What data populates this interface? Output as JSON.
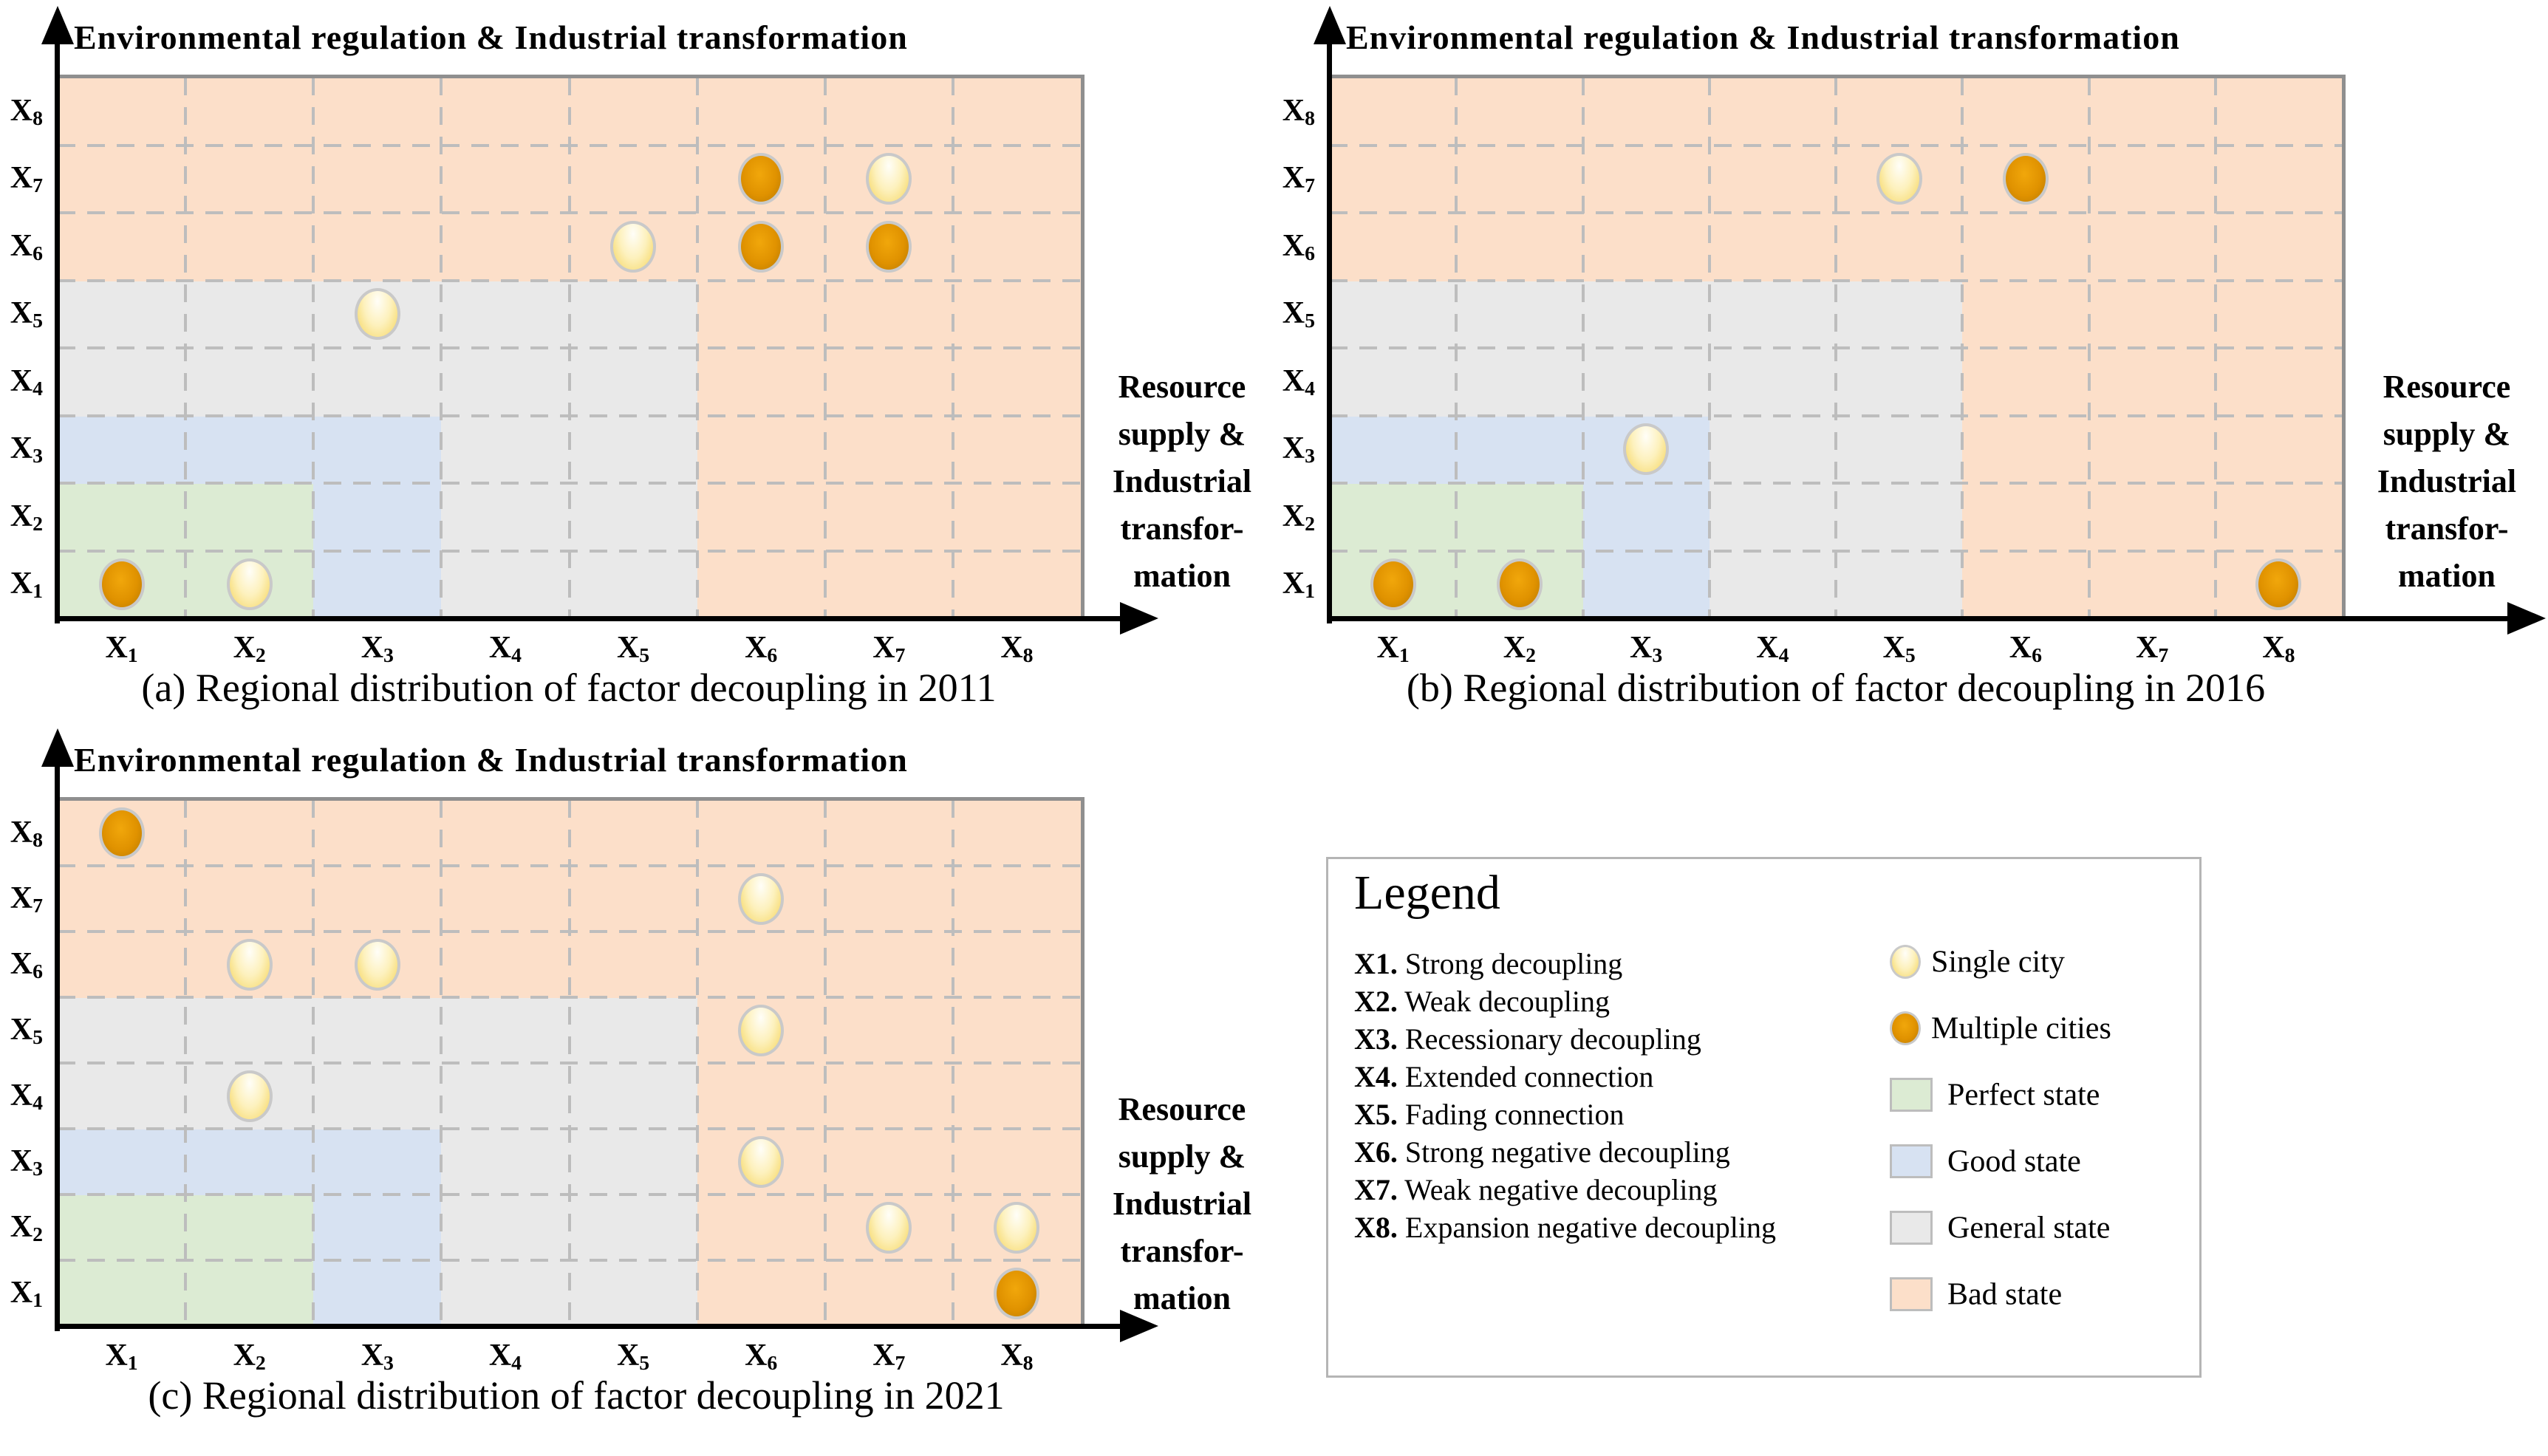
{
  "figure": {
    "y_axis_title": "Environmental regulation & Industrial transformation",
    "x_axis_label_lines": [
      "Resource",
      "supply &",
      "Industrial",
      "transfor-",
      "mation"
    ],
    "state_zones": {
      "perfect": [
        1,
        2
      ],
      "good": [
        3,
        3
      ],
      "general": [
        4,
        5
      ],
      "bad": [
        6,
        8
      ]
    }
  },
  "colors": {
    "perfect_state": "#dcebd3",
    "good_state": "#d7e2f2",
    "general_state": "#e9e9e9",
    "bad_state": "#fcdfc9",
    "grid": "#bdbdbd",
    "plot_border": "#8f8f8f",
    "axis": "#000000",
    "marker_ring": "#c9c9c9",
    "single_city": "#f5d55e",
    "multiple_cities": "#e09200"
  },
  "chart_data": [
    {
      "id": "a",
      "type": "scatter",
      "title": "Environmental regulation & Industrial transformation",
      "xlabel": "Resource supply & Industrial transformation",
      "ylabel": "Environmental regulation & Industrial transformation",
      "caption": "(a) Regional distribution of factor decoupling in 2011",
      "x_ticks": [
        "X1",
        "X2",
        "X3",
        "X4",
        "X5",
        "X6",
        "X7",
        "X8"
      ],
      "y_ticks": [
        "X1",
        "X2",
        "X3",
        "X4",
        "X5",
        "X6",
        "X7",
        "X8"
      ],
      "series": [
        {
          "name": "Single city",
          "marker": "single",
          "points": [
            [
              2,
              1
            ],
            [
              3,
              5
            ],
            [
              5,
              6
            ],
            [
              7,
              7
            ]
          ]
        },
        {
          "name": "Multiple cities",
          "marker": "multiple",
          "points": [
            [
              1,
              1
            ],
            [
              6,
              6
            ],
            [
              6,
              7
            ],
            [
              7,
              6
            ]
          ]
        }
      ]
    },
    {
      "id": "b",
      "type": "scatter",
      "title": "Environmental regulation & Industrial transformation",
      "xlabel": "Resource supply & Industrial transformation",
      "ylabel": "Environmental regulation & Industrial transformation",
      "caption": "(b) Regional distribution of factor decoupling in 2016",
      "x_ticks": [
        "X1",
        "X2",
        "X3",
        "X4",
        "X5",
        "X6",
        "X7",
        "X8"
      ],
      "y_ticks": [
        "X1",
        "X2",
        "X3",
        "X4",
        "X5",
        "X6",
        "X7",
        "X8"
      ],
      "series": [
        {
          "name": "Single city",
          "marker": "single",
          "points": [
            [
              3,
              3
            ],
            [
              5,
              7
            ]
          ]
        },
        {
          "name": "Multiple cities",
          "marker": "multiple",
          "points": [
            [
              1,
              1
            ],
            [
              2,
              1
            ],
            [
              6,
              7
            ],
            [
              8,
              1
            ]
          ]
        }
      ]
    },
    {
      "id": "c",
      "type": "scatter",
      "title": "Environmental regulation & Industrial transformation",
      "xlabel": "Resource supply & Industrial transformation",
      "ylabel": "Environmental regulation & Industrial transformation",
      "caption": "(c) Regional distribution of factor decoupling in 2021",
      "x_ticks": [
        "X1",
        "X2",
        "X3",
        "X4",
        "X5",
        "X6",
        "X7",
        "X8"
      ],
      "y_ticks": [
        "X1",
        "X2",
        "X3",
        "X4",
        "X5",
        "X6",
        "X7",
        "X8"
      ],
      "series": [
        {
          "name": "Single city",
          "marker": "single",
          "points": [
            [
              2,
              4
            ],
            [
              2,
              6
            ],
            [
              3,
              6
            ],
            [
              6,
              3
            ],
            [
              6,
              5
            ],
            [
              6,
              7
            ],
            [
              7,
              2
            ],
            [
              8,
              2
            ]
          ]
        },
        {
          "name": "Multiple cities",
          "marker": "multiple",
          "points": [
            [
              1,
              8
            ],
            [
              8,
              1
            ]
          ]
        }
      ]
    }
  ],
  "legend": {
    "title": "Legend",
    "definitions": [
      {
        "code": "X1.",
        "label": "Strong decoupling"
      },
      {
        "code": "X2.",
        "label": "Weak decoupling"
      },
      {
        "code": "X3.",
        "label": "Recessionary decoupling"
      },
      {
        "code": "X4.",
        "label": "Extended connection"
      },
      {
        "code": "X5.",
        "label": "Fading connection"
      },
      {
        "code": "X6.",
        "label": "Strong negative decoupling"
      },
      {
        "code": "X7.",
        "label": "Weak negative decoupling"
      },
      {
        "code": "X8.",
        "label": "Expansion negative decoupling"
      }
    ],
    "markers": [
      {
        "type": "single",
        "label": "Single city"
      },
      {
        "type": "multiple",
        "label": "Multiple cities"
      }
    ],
    "states": [
      {
        "color_key": "perfect_state",
        "label": "Perfect state"
      },
      {
        "color_key": "good_state",
        "label": "Good state"
      },
      {
        "color_key": "general_state",
        "label": "General state"
      },
      {
        "color_key": "bad_state",
        "label": "Bad state"
      }
    ]
  }
}
